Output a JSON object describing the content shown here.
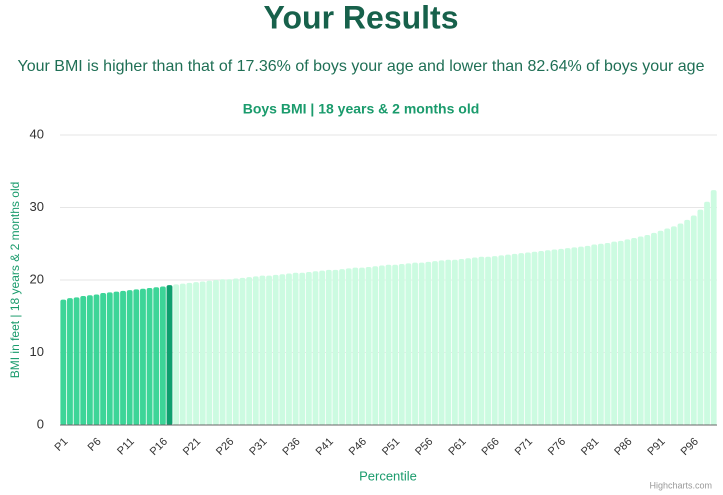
{
  "header": {
    "title": "Your Results",
    "subtitle": "Your BMI is higher than that of 17.36% of boys your age and lower than 82.64% of boys your age"
  },
  "chart_data": {
    "type": "bar",
    "title": "Boys BMI | 18 years & 2 months old",
    "x_label": "Percentile",
    "y_label": "BMI in feet | 18 years & 2 months old",
    "credit": "Highcharts.com",
    "categories": [
      "P1",
      null,
      null,
      null,
      null,
      "P6",
      null,
      null,
      null,
      null,
      "P11",
      null,
      null,
      null,
      null,
      "P16",
      null,
      null,
      null,
      null,
      "P21",
      null,
      null,
      null,
      null,
      "P26",
      null,
      null,
      null,
      null,
      "P31",
      null,
      null,
      null,
      null,
      "P36",
      null,
      null,
      null,
      null,
      "P41",
      null,
      null,
      null,
      null,
      "P46",
      null,
      null,
      null,
      null,
      "P51",
      null,
      null,
      null,
      null,
      "P56",
      null,
      null,
      null,
      null,
      "P61",
      null,
      null,
      null,
      null,
      "P66",
      null,
      null,
      null,
      null,
      "P71",
      null,
      null,
      null,
      null,
      "P76",
      null,
      null,
      null,
      null,
      "P81",
      null,
      null,
      null,
      null,
      "P86",
      null,
      null,
      null,
      null,
      "P91",
      null,
      null,
      null,
      null,
      "P96",
      null,
      null,
      null
    ],
    "values": [
      17.3,
      17.5,
      17.6,
      17.8,
      17.9,
      18.0,
      18.2,
      18.3,
      18.4,
      18.5,
      18.6,
      18.7,
      18.8,
      18.9,
      19.0,
      19.1,
      19.3,
      19.4,
      19.5,
      19.6,
      19.7,
      19.8,
      19.9,
      20.0,
      20.1,
      20.1,
      20.2,
      20.3,
      20.4,
      20.5,
      20.6,
      20.6,
      20.7,
      20.8,
      20.9,
      21.0,
      21.0,
      21.1,
      21.2,
      21.3,
      21.4,
      21.4,
      21.5,
      21.6,
      21.7,
      21.7,
      21.8,
      21.9,
      22.0,
      22.1,
      22.1,
      22.2,
      22.3,
      22.4,
      22.4,
      22.5,
      22.6,
      22.7,
      22.8,
      22.8,
      22.9,
      23.0,
      23.1,
      23.2,
      23.2,
      23.3,
      23.4,
      23.5,
      23.6,
      23.7,
      23.8,
      23.9,
      24.0,
      24.1,
      24.2,
      24.3,
      24.4,
      24.5,
      24.6,
      24.7,
      24.9,
      25.0,
      25.1,
      25.3,
      25.4,
      25.6,
      25.8,
      26.0,
      26.2,
      26.5,
      26.8,
      27.1,
      27.4,
      27.8,
      28.3,
      28.9,
      29.7,
      30.8,
      32.4
    ],
    "colors": [
      "#3dd598",
      "#3dd598",
      "#3dd598",
      "#3dd598",
      "#3dd598",
      "#3dd598",
      "#3dd598",
      "#3dd598",
      "#3dd598",
      "#3dd598",
      "#3dd598",
      "#3dd598",
      "#3dd598",
      "#3dd598",
      "#3dd598",
      "#3dd598",
      "#0e9f6e",
      "#ccfbe1",
      "#ccfbe1",
      "#ccfbe1",
      "#ccfbe1",
      "#ccfbe1",
      "#ccfbe1",
      "#ccfbe1",
      "#ccfbe1",
      "#ccfbe1",
      "#ccfbe1",
      "#ccfbe1",
      "#ccfbe1",
      "#ccfbe1",
      "#ccfbe1",
      "#ccfbe1",
      "#ccfbe1",
      "#ccfbe1",
      "#ccfbe1",
      "#ccfbe1",
      "#ccfbe1",
      "#ccfbe1",
      "#ccfbe1",
      "#ccfbe1",
      "#ccfbe1",
      "#ccfbe1",
      "#ccfbe1",
      "#ccfbe1",
      "#ccfbe1",
      "#ccfbe1",
      "#ccfbe1",
      "#ccfbe1",
      "#ccfbe1",
      "#ccfbe1",
      "#ccfbe1",
      "#ccfbe1",
      "#ccfbe1",
      "#ccfbe1",
      "#ccfbe1",
      "#ccfbe1",
      "#ccfbe1",
      "#ccfbe1",
      "#ccfbe1",
      "#ccfbe1",
      "#ccfbe1",
      "#ccfbe1",
      "#ccfbe1",
      "#ccfbe1",
      "#ccfbe1",
      "#ccfbe1",
      "#ccfbe1",
      "#ccfbe1",
      "#ccfbe1",
      "#ccfbe1",
      "#ccfbe1",
      "#ccfbe1",
      "#ccfbe1",
      "#ccfbe1",
      "#ccfbe1",
      "#ccfbe1",
      "#ccfbe1",
      "#ccfbe1",
      "#ccfbe1",
      "#ccfbe1",
      "#ccfbe1",
      "#ccfbe1",
      "#ccfbe1",
      "#ccfbe1",
      "#ccfbe1",
      "#ccfbe1",
      "#ccfbe1",
      "#ccfbe1",
      "#ccfbe1",
      "#ccfbe1",
      "#ccfbe1",
      "#ccfbe1",
      "#ccfbe1",
      "#ccfbe1",
      "#ccfbe1",
      "#ccfbe1",
      "#ccfbe1",
      "#ccfbe1",
      "#ccfbe1"
    ],
    "ylim": [
      0,
      40
    ],
    "yticks": [
      0,
      10,
      20,
      30,
      40
    ],
    "grid": true
  }
}
